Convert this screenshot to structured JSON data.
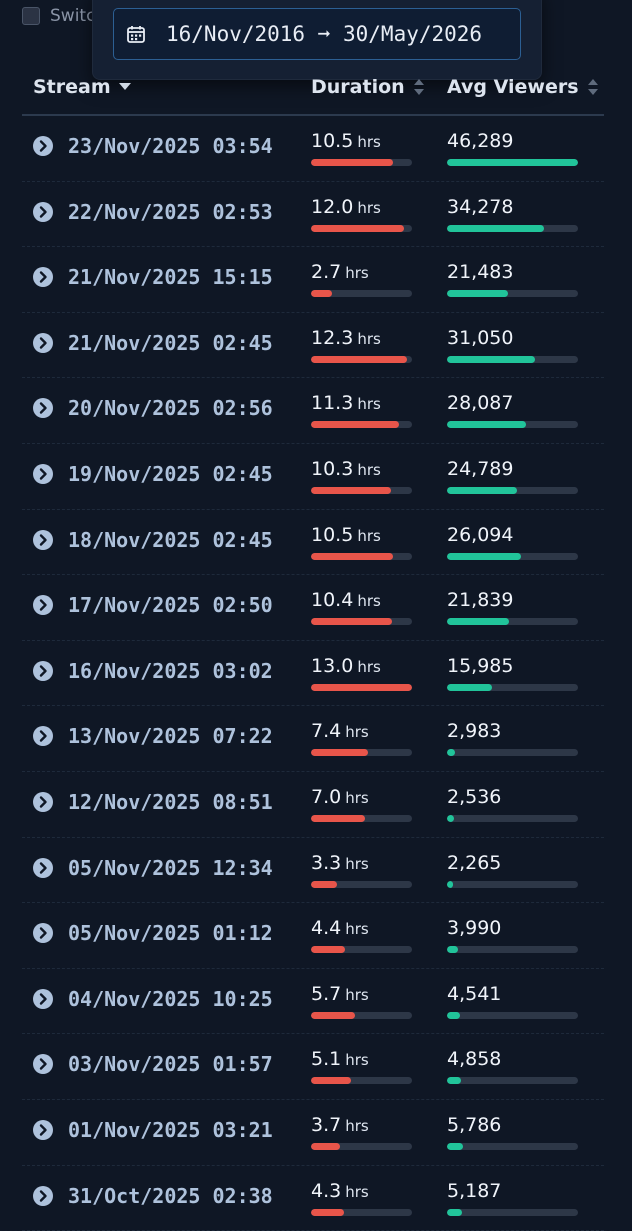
{
  "topbar": {
    "switch_label": "Switc"
  },
  "date_range": {
    "text": "16/Nov/2016 ➞ 30/May/2026",
    "icon": "calendar-icon"
  },
  "table": {
    "columns": {
      "stream": "Stream",
      "duration": "Duration",
      "viewers": "Avg Viewers"
    },
    "unit": "hrs",
    "colors": {
      "duration_bar": "#e8554a",
      "viewers_bar": "#21c49a",
      "bar_track": "#2d3747"
    },
    "max_duration": 13.0,
    "max_viewers": 46289,
    "rows": [
      {
        "date": "23/Nov/2025 03:54",
        "duration": "10.5",
        "viewers": "46,289"
      },
      {
        "date": "22/Nov/2025 02:53",
        "duration": "12.0",
        "viewers": "34,278"
      },
      {
        "date": "21/Nov/2025 15:15",
        "duration": "2.7",
        "viewers": "21,483"
      },
      {
        "date": "21/Nov/2025 02:45",
        "duration": "12.3",
        "viewers": "31,050"
      },
      {
        "date": "20/Nov/2025 02:56",
        "duration": "11.3",
        "viewers": "28,087"
      },
      {
        "date": "19/Nov/2025 02:45",
        "duration": "10.3",
        "viewers": "24,789"
      },
      {
        "date": "18/Nov/2025 02:45",
        "duration": "10.5",
        "viewers": "26,094"
      },
      {
        "date": "17/Nov/2025 02:50",
        "duration": "10.4",
        "viewers": "21,839"
      },
      {
        "date": "16/Nov/2025 03:02",
        "duration": "13.0",
        "viewers": "15,985"
      },
      {
        "date": "13/Nov/2025 07:22",
        "duration": "7.4",
        "viewers": "2,983"
      },
      {
        "date": "12/Nov/2025 08:51",
        "duration": "7.0",
        "viewers": "2,536"
      },
      {
        "date": "05/Nov/2025 12:34",
        "duration": "3.3",
        "viewers": "2,265"
      },
      {
        "date": "05/Nov/2025 01:12",
        "duration": "4.4",
        "viewers": "3,990"
      },
      {
        "date": "04/Nov/2025 10:25",
        "duration": "5.7",
        "viewers": "4,541"
      },
      {
        "date": "03/Nov/2025 01:57",
        "duration": "5.1",
        "viewers": "4,858"
      },
      {
        "date": "01/Nov/2025 03:21",
        "duration": "3.7",
        "viewers": "5,786"
      },
      {
        "date": "31/Oct/2025 02:38",
        "duration": "4.3",
        "viewers": "5,187"
      }
    ]
  }
}
